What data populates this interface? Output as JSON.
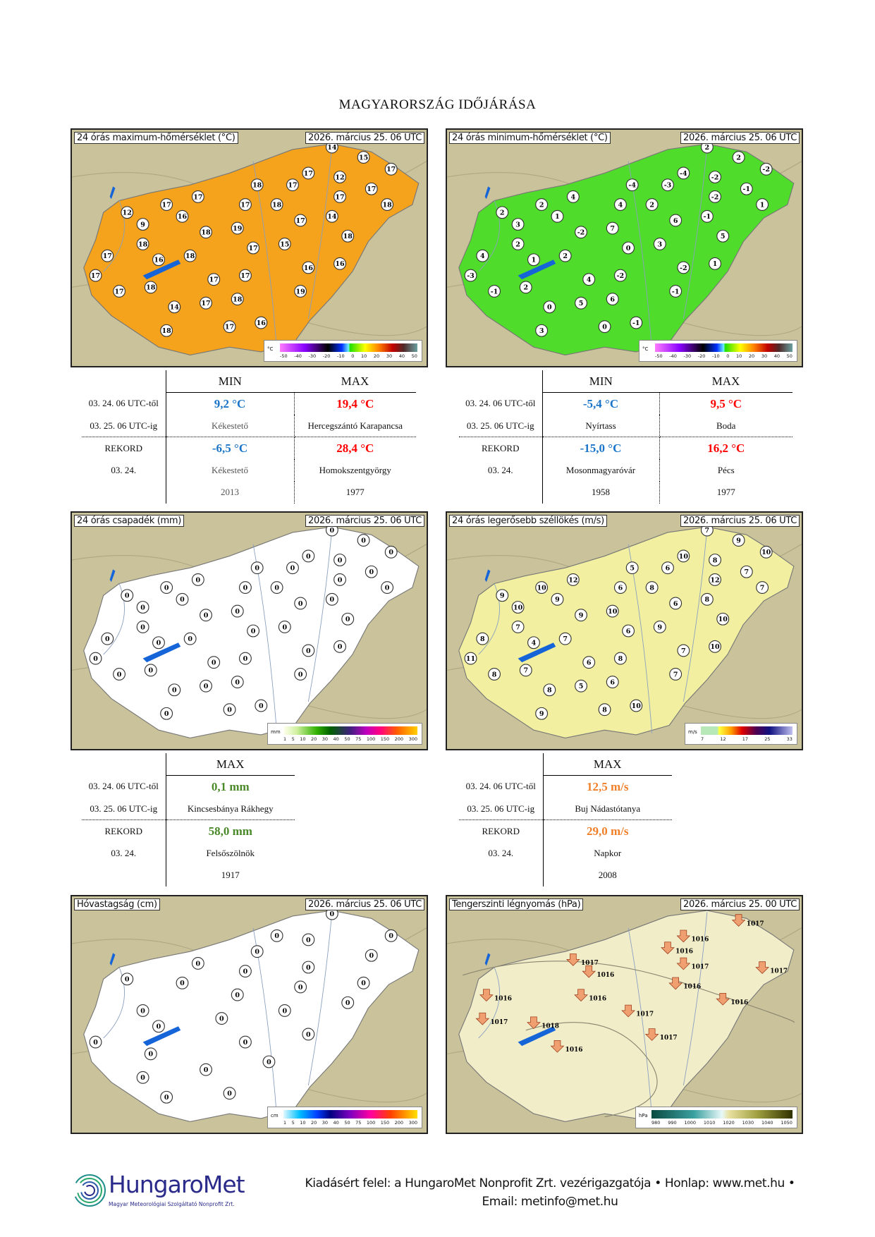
{
  "title": "MAGYARORSZÁG IDŐJÁRÁSA",
  "maps": [
    {
      "label": "24 órás maximum-hőmérséklet (°C)",
      "date": "2026. március 25. 06 UTC",
      "fill": "#f5a21c",
      "unit": "°C",
      "scale": "temp",
      "values": [
        "14",
        "15",
        "17",
        "17",
        "12",
        "17",
        "18",
        "17",
        "17",
        "12",
        "9",
        "16",
        "17",
        "18",
        "17",
        "17",
        "18",
        "14",
        "17",
        "19",
        "18",
        "18",
        "17",
        "17",
        "16",
        "18",
        "17",
        "15",
        "18",
        "17",
        "18",
        "17",
        "17",
        "16",
        "16",
        "14",
        "17",
        "18",
        "19",
        "18",
        "17",
        "16"
      ]
    },
    {
      "label": "24 órás minimum-hőmérséklet (°C)",
      "date": "2026. március 25. 06 UTC",
      "fill": "#4fdc2a",
      "unit": "°C",
      "scale": "temp",
      "values": [
        "2",
        "2",
        "-2",
        "-4",
        "-2",
        "-3",
        "-4",
        "4",
        "2",
        "2",
        "3",
        "1",
        "4",
        "2",
        "-2",
        "-1",
        "1",
        "-1",
        "6",
        "7",
        "-2",
        "2",
        "4",
        "-3",
        "1",
        "2",
        "0",
        "3",
        "5",
        "-1",
        "2",
        "4",
        "-2",
        "-2",
        "1",
        "0",
        "5",
        "6",
        "-1",
        "3",
        "0",
        "-1"
      ]
    },
    {
      "label": "24 órás csapadék (mm)",
      "date": "2026. március 25. 06 UTC",
      "fill": "#ffffff",
      "unit": "mm",
      "scale": "precip",
      "values": [
        "0",
        "0",
        "0",
        "0",
        "0",
        "0",
        "0",
        "0",
        "0",
        "0",
        "0",
        "0",
        "0",
        "0",
        "0",
        "0",
        "0",
        "0",
        "0",
        "0",
        "0",
        "0",
        "0",
        "0",
        "0",
        "0",
        "0",
        "0",
        "0",
        "0",
        "0",
        "0",
        "0",
        "0",
        "0",
        "0",
        "0",
        "0",
        "0",
        "0",
        "0",
        "0"
      ]
    },
    {
      "label": "24 órás legerősebb széllökés (m/s)",
      "date": "2026. március 25. 06 UTC",
      "fill": "#f2f0a0",
      "unit": "m/s",
      "scale": "wind",
      "values": [
        "7",
        "9",
        "10",
        "10",
        "8",
        "6",
        "5",
        "12",
        "10",
        "9",
        "10",
        "9",
        "6",
        "8",
        "12",
        "7",
        "7",
        "8",
        "6",
        "10",
        "9",
        "7",
        "8",
        "11",
        "4",
        "7",
        "6",
        "9",
        "10",
        "8",
        "7",
        "6",
        "8",
        "7",
        "10",
        "8",
        "5",
        "6",
        "7",
        "9",
        "8",
        "10"
      ]
    },
    {
      "label": "Hóvastagság (cm)",
      "date": "2026. március 25. 06 UTC",
      "fill": "#ffffff",
      "unit": "cm",
      "scale": "snow",
      "values": [
        "0",
        "0",
        "0",
        "0",
        "0",
        "0",
        "0",
        "0",
        "0",
        "0",
        "0",
        "0",
        "0",
        "0",
        "0",
        "0",
        "0",
        "0",
        "0",
        "0",
        "0",
        "0",
        "0",
        "0",
        "0",
        "0",
        "0",
        "0"
      ]
    },
    {
      "label": "Tengerszinti légnyomás (hPa)",
      "date": "2026. március 25. 00 UTC",
      "fill": "#f1edc9",
      "unit": "hPa",
      "scale": "pressure",
      "values": [
        "1017",
        "1016",
        "1016",
        "1017",
        "1016",
        "1016",
        "1017",
        "1017",
        "1016",
        "1016",
        "1017",
        "1018",
        "1017",
        "1016",
        "1016",
        "1017"
      ]
    }
  ],
  "scales": {
    "temp": {
      "ticks": [
        "-50",
        "-40",
        "-30",
        "-20",
        "-10",
        "0",
        "10",
        "20",
        "30",
        "40",
        "50"
      ]
    },
    "precip": {
      "ticks": [
        "1",
        "5",
        "10",
        "20",
        "30",
        "40",
        "50",
        "75",
        "100",
        "150",
        "200",
        "300"
      ]
    },
    "wind": {
      "ticks": [
        "7",
        "12",
        "17",
        "25",
        "33"
      ]
    },
    "snow": {
      "ticks": [
        "1",
        "5",
        "10",
        "20",
        "30",
        "40",
        "50",
        "75",
        "100",
        "150",
        "200",
        "300"
      ]
    },
    "pressure": {
      "ticks": [
        "980",
        "990",
        "1000",
        "1010",
        "1020",
        "1030",
        "1040",
        "1050"
      ]
    }
  },
  "tables": [
    {
      "headers": [
        "MIN",
        "MAX"
      ],
      "from": "03. 24. 06 UTC-től",
      "to": "03. 25. 06 UTC-ig",
      "rekord": "REKORD",
      "rdate": "03. 24.",
      "min": {
        "value": "9,2 °C",
        "place": "Kékestető",
        "rvalue": "-6,5 °C",
        "rplace": "Kékestető",
        "ryear": "2013"
      },
      "max": {
        "value": "19,4 °C",
        "place": "Hercegszántó Karapancsa",
        "rvalue": "28,4 °C",
        "rplace": "Homokszentgyörgy",
        "ryear": "1977"
      }
    },
    {
      "headers": [
        "MIN",
        "MAX"
      ],
      "from": "03. 24. 06 UTC-től",
      "to": "03. 25. 06 UTC-ig",
      "rekord": "REKORD",
      "rdate": "03. 24.",
      "min": {
        "value": "-5,4 °C",
        "place": "Nyírtass",
        "rvalue": "-15,0 °C",
        "rplace": "Mosonmagyaróvár",
        "ryear": "1958"
      },
      "max": {
        "value": "9,5 °C",
        "place": "Boda",
        "rvalue": "16,2 °C",
        "rplace": "Pécs",
        "ryear": "1977"
      }
    },
    {
      "headers": [
        "MAX"
      ],
      "from": "03. 24. 06 UTC-től",
      "to": "03. 25. 06 UTC-ig",
      "rekord": "REKORD",
      "rdate": "03. 24.",
      "max": {
        "value": "0,1 mm",
        "place": "Kincsesbánya Rákhegy",
        "rvalue": "58,0 mm",
        "rplace": "Felsőszölnök",
        "ryear": "1917"
      }
    },
    {
      "headers": [
        "MAX"
      ],
      "from": "03. 24. 06 UTC-től",
      "to": "03. 25. 06 UTC-ig",
      "rekord": "REKORD",
      "rdate": "03. 24.",
      "max": {
        "value": "12,5 m/s",
        "place": "Buj Nádastótanya",
        "rvalue": "29,0 m/s",
        "rplace": "Napkor",
        "ryear": "2008"
      }
    }
  ],
  "logo": {
    "name": "HungaroMet",
    "sub": "Magyar Meteorológiai Szolgáltató Nonprofit Zrt."
  },
  "footer": {
    "line1": "Kiadásért felel: a HungaroMet Nonprofit Zrt. vezérigazgatója • Honlap: www.met.hu •",
    "line2": "Email: metinfo@met.hu"
  }
}
